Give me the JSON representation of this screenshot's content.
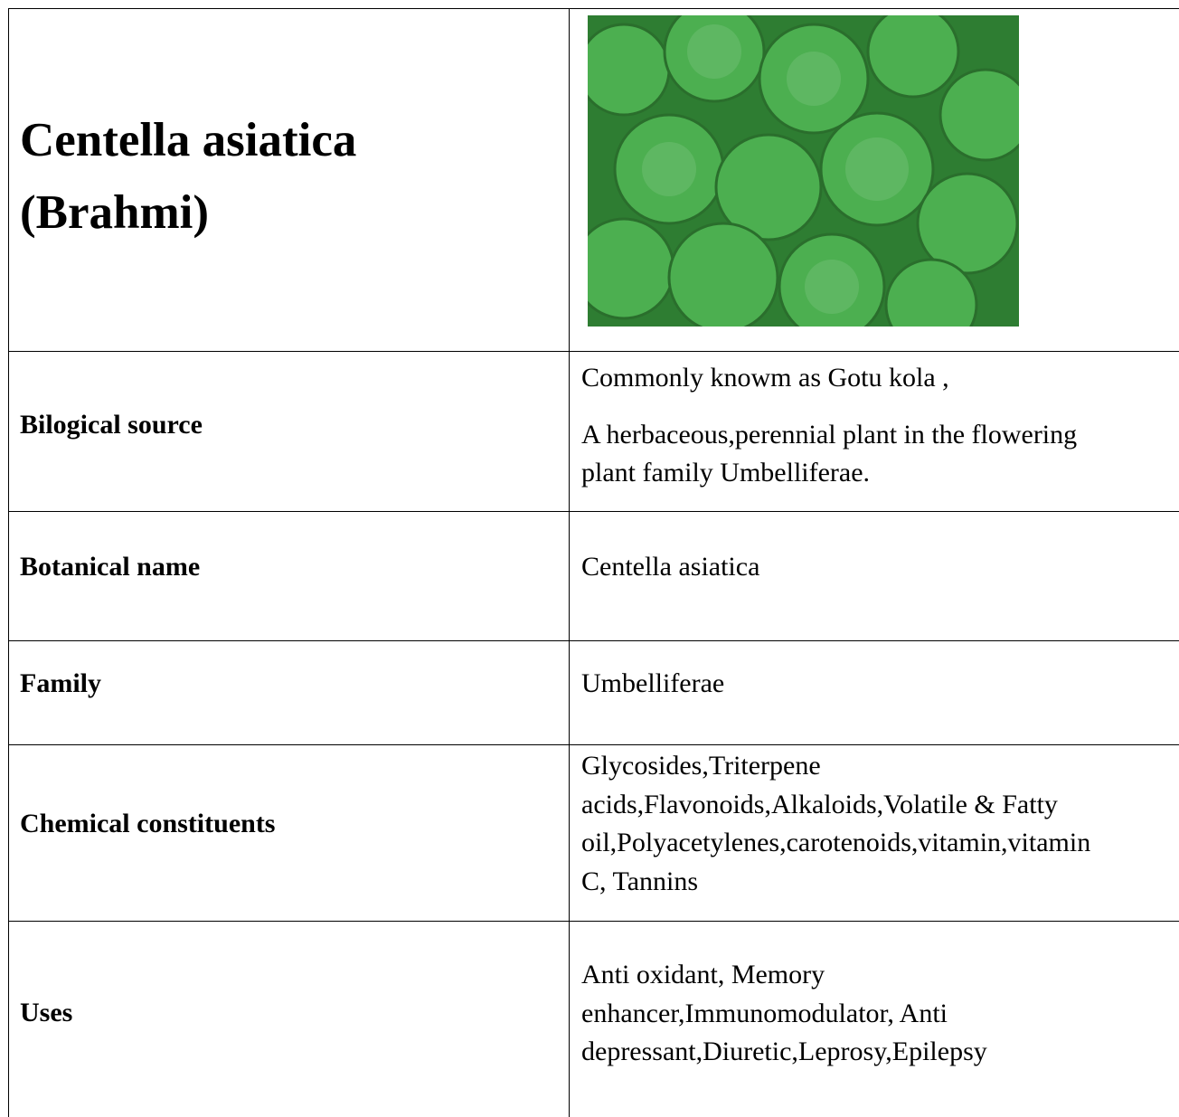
{
  "header": {
    "title_lines": [
      "Centella asiatica",
      "(Brahmi)"
    ]
  },
  "rows": [
    {
      "label": "Bilogical source",
      "paragraphs": [
        [
          "Commonly knowm as Gotu kola ,"
        ],
        [
          "A herbaceous,perennial plant in the flowering",
          "plant family Umbelliferae."
        ]
      ]
    },
    {
      "label": "Botanical name",
      "paragraphs": [
        [
          "Centella asiatica"
        ]
      ]
    },
    {
      "label": "Family",
      "paragraphs": [
        [
          "Umbelliferae"
        ]
      ]
    },
    {
      "label": "Chemical constituents",
      "paragraphs": [
        [
          "Glycosides,Triterpene",
          "acids,Flavonoids,Alkaloids,Volatile & Fatty",
          "oil,Polyacetylenes,carotenoids,vitamin,vitamin",
          "C, Tannins"
        ]
      ]
    },
    {
      "label": "Uses",
      "paragraphs": [
        [
          "Anti oxidant, Memory",
          "enhancer,Immunomodulator, Anti",
          "depressant,Diuretic,Leprosy,Epilepsy"
        ]
      ]
    }
  ]
}
